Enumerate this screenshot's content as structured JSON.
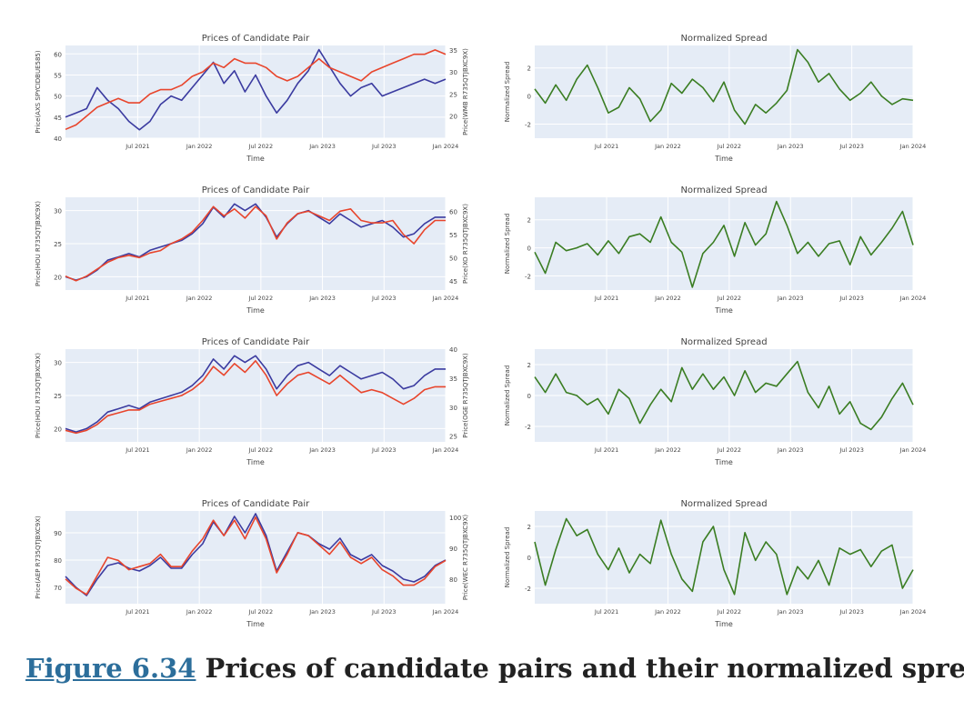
{
  "caption": {
    "figure_label": "Figure 6.34",
    "text": " Prices of candidate pairs and their normalized spread."
  },
  "colors": {
    "blue_series": "#3b3ba0",
    "red_series": "#e8452c",
    "green_series": "#3a7d22",
    "plot_bg": "#e5ecf6",
    "grid": "#ffffff"
  },
  "chart_data": [
    {
      "type": "line",
      "title": "Prices of Candidate Pair",
      "xlabel": "Time",
      "ylabel": "Price(AXS SPYCIDBUE585)",
      "y2label": "Price(WMB R735QTJBXC9X)",
      "xticks": [
        "Jul 2021",
        "Jan 2022",
        "Jul 2022",
        "Jan 2023",
        "Jul 2023",
        "Jan 2024"
      ],
      "ylim": [
        40,
        62
      ],
      "yticks": [
        40,
        45,
        50,
        55,
        60
      ],
      "y2lim": [
        15,
        36
      ],
      "y2ticks": [
        20,
        25,
        30,
        35
      ],
      "series": [
        {
          "color": "#3b3ba0",
          "axis": "y",
          "values": [
            45,
            46,
            47,
            52,
            49,
            47,
            44,
            42,
            44,
            48,
            50,
            49,
            52,
            55,
            58,
            53,
            56,
            51,
            55,
            50,
            46,
            49,
            53,
            56,
            61,
            57,
            53,
            50,
            52,
            53,
            50,
            51,
            52,
            53,
            54,
            53,
            54
          ]
        },
        {
          "color": "#e8452c",
          "axis": "y2",
          "values": [
            17,
            18,
            20,
            22,
            23,
            24,
            23,
            23,
            25,
            26,
            26,
            27,
            29,
            30,
            32,
            31,
            33,
            32,
            32,
            31,
            29,
            28,
            29,
            31,
            33,
            31,
            30,
            29,
            28,
            30,
            31,
            32,
            33,
            34,
            34,
            35,
            34
          ]
        }
      ]
    },
    {
      "type": "line",
      "title": "Normalized Spread",
      "xlabel": "Time",
      "ylabel": "Normalized Spread",
      "xticks": [
        "Jul 2021",
        "Jan 2022",
        "Jul 2022",
        "Jan 2023",
        "Jul 2023",
        "Jan 2024"
      ],
      "ylim": [
        -3,
        3.6
      ],
      "yticks": [
        -2,
        0,
        2
      ],
      "series": [
        {
          "color": "#3a7d22",
          "axis": "y",
          "values": [
            0.5,
            -0.5,
            0.8,
            -0.3,
            1.2,
            2.2,
            0.6,
            -1.2,
            -0.8,
            0.6,
            -0.2,
            -1.8,
            -1.0,
            0.9,
            0.2,
            1.2,
            0.6,
            -0.4,
            1.0,
            -1.0,
            -2.0,
            -0.6,
            -1.2,
            -0.5,
            0.4,
            3.3,
            2.4,
            1.0,
            1.6,
            0.5,
            -0.3,
            0.2,
            1.0,
            0.0,
            -0.6,
            -0.2,
            -0.3
          ]
        }
      ]
    },
    {
      "type": "line",
      "title": "Prices of Candidate Pair",
      "xlabel": "Time",
      "ylabel": "Price(HOU R735QTJBXC9X)",
      "y2label": "Price(XO R735QTJBXC9X)",
      "xticks": [
        "Jul 2021",
        "Jan 2022",
        "Jul 2022",
        "Jan 2023",
        "Jul 2023",
        "Jan 2024"
      ],
      "ylim": [
        18,
        32
      ],
      "yticks": [
        20,
        25,
        30
      ],
      "y2lim": [
        43,
        63
      ],
      "y2ticks": [
        45,
        50,
        55,
        60
      ],
      "series": [
        {
          "color": "#3b3ba0",
          "axis": "y",
          "values": [
            20,
            19.5,
            20,
            21,
            22.5,
            23,
            23.5,
            23,
            24,
            24.5,
            25,
            25.5,
            26.5,
            28,
            30.5,
            29,
            31,
            30,
            31,
            29,
            26,
            28,
            29.5,
            30,
            29,
            28,
            29.5,
            28.5,
            27.5,
            28,
            28.5,
            27.5,
            26,
            26.5,
            28,
            29,
            29
          ]
        },
        {
          "color": "#e8452c",
          "axis": "y2",
          "values": [
            46,
            45,
            46,
            47.5,
            49,
            50,
            50.5,
            50,
            51,
            51.5,
            53,
            54,
            55.5,
            58,
            61,
            59,
            60.5,
            58.5,
            61,
            59,
            54,
            57.5,
            59.5,
            60,
            59,
            58,
            60,
            60.5,
            58,
            57.5,
            57.5,
            58,
            55,
            53,
            56,
            58,
            58
          ]
        }
      ]
    },
    {
      "type": "line",
      "title": "Normalized Spread",
      "xlabel": "Time",
      "ylabel": "Normalized Spread",
      "xticks": [
        "Jul 2021",
        "Jan 2022",
        "Jul 2022",
        "Jan 2023",
        "Jul 2023",
        "Jan 2024"
      ],
      "ylim": [
        -3,
        3.6
      ],
      "yticks": [
        -2,
        0,
        2
      ],
      "series": [
        {
          "color": "#3a7d22",
          "axis": "y",
          "values": [
            -0.3,
            -1.8,
            0.4,
            -0.2,
            0.0,
            0.3,
            -0.5,
            0.5,
            -0.4,
            0.8,
            1.0,
            0.4,
            2.2,
            0.4,
            -0.3,
            -2.8,
            -0.4,
            0.4,
            1.6,
            -0.6,
            1.8,
            0.2,
            1.0,
            3.3,
            1.6,
            -0.4,
            0.4,
            -0.6,
            0.3,
            0.5,
            -1.2,
            0.8,
            -0.5,
            0.4,
            1.4,
            2.6,
            0.2
          ]
        }
      ]
    },
    {
      "type": "line",
      "title": "Prices of Candidate Pair",
      "xlabel": "Time",
      "ylabel": "Price(HOU R735QTJBXC9X)",
      "y2label": "Price(OGE R735QTJBXC9X)",
      "xticks": [
        "Jul 2021",
        "Jan 2022",
        "Jul 2022",
        "Jan 2023",
        "Jul 2023",
        "Jan 2024"
      ],
      "ylim": [
        18,
        32
      ],
      "yticks": [
        20,
        25,
        30
      ],
      "y2lim": [
        24,
        40
      ],
      "y2ticks": [
        25,
        30,
        35,
        40
      ],
      "series": [
        {
          "color": "#3b3ba0",
          "axis": "y",
          "values": [
            20,
            19.5,
            20,
            21,
            22.5,
            23,
            23.5,
            23,
            24,
            24.5,
            25,
            25.5,
            26.5,
            28,
            30.5,
            29,
            31,
            30,
            31,
            29,
            26,
            28,
            29.5,
            30,
            29,
            28,
            29.5,
            28.5,
            27.5,
            28,
            28.5,
            27.5,
            26,
            26.5,
            28,
            29,
            29
          ]
        },
        {
          "color": "#e8452c",
          "axis": "y2",
          "values": [
            26,
            25.5,
            26,
            27,
            28.5,
            29,
            29.5,
            29.5,
            30.5,
            31,
            31.5,
            32,
            33,
            34.5,
            37,
            35.5,
            37.5,
            36,
            38,
            35.5,
            32,
            34,
            35.5,
            36,
            35,
            34,
            35.5,
            34,
            32.5,
            33,
            32.5,
            31.5,
            30.5,
            31.5,
            33,
            33.5,
            33.5
          ]
        }
      ]
    },
    {
      "type": "line",
      "title": "Normalized Spread",
      "xlabel": "Time",
      "ylabel": "Normalized Spread",
      "xticks": [
        "Jul 2021",
        "Jan 2022",
        "Jul 2022",
        "Jan 2023",
        "Jul 2023",
        "Jan 2024"
      ],
      "ylim": [
        -3,
        3
      ],
      "yticks": [
        -2,
        0,
        2
      ],
      "series": [
        {
          "color": "#3a7d22",
          "axis": "y",
          "values": [
            1.2,
            0.2,
            1.4,
            0.2,
            0.0,
            -0.6,
            -0.2,
            -1.2,
            0.4,
            -0.2,
            -1.8,
            -0.6,
            0.4,
            -0.4,
            1.8,
            0.4,
            1.4,
            0.4,
            1.2,
            0.0,
            1.6,
            0.2,
            0.8,
            0.6,
            1.4,
            2.2,
            0.2,
            -0.8,
            0.6,
            -1.2,
            -0.4,
            -1.8,
            -2.2,
            -1.4,
            -0.2,
            0.8,
            -0.6
          ]
        }
      ]
    },
    {
      "type": "line",
      "title": "Prices of Candidate Pair",
      "xlabel": "Time",
      "ylabel": "Price(AEP R735QTJBXC9X)",
      "y2label": "Price(WEC R735QTJBXC9X)",
      "xticks": [
        "Jul 2021",
        "Jan 2022",
        "Jul 2022",
        "Jan 2023",
        "Jul 2023",
        "Jan 2024"
      ],
      "ylim": [
        64,
        98
      ],
      "yticks": [
        70,
        80,
        90
      ],
      "y2lim": [
        72,
        102
      ],
      "y2ticks": [
        80,
        90,
        100
      ],
      "series": [
        {
          "color": "#3b3ba0",
          "axis": "y",
          "values": [
            74,
            70,
            67,
            73,
            78,
            79,
            77,
            76,
            78,
            81,
            77,
            77,
            82,
            86,
            94,
            89,
            96,
            90,
            97,
            89,
            76,
            83,
            90,
            89,
            86,
            84,
            88,
            82,
            80,
            82,
            78,
            76,
            73,
            72,
            74,
            78,
            80
          ]
        },
        {
          "color": "#e8452c",
          "axis": "y2",
          "values": [
            80,
            77,
            75,
            81,
            87,
            86,
            83,
            84,
            85,
            88,
            84,
            84,
            89,
            93,
            99,
            94,
            99,
            93,
            100,
            93,
            82,
            88,
            95,
            94,
            91,
            88,
            92,
            87,
            85,
            87,
            83,
            81,
            78,
            78,
            80,
            84,
            86
          ]
        }
      ]
    },
    {
      "type": "line",
      "title": "Normalized Spread",
      "xlabel": "Time",
      "ylabel": "Normalized Spread",
      "xticks": [
        "Jul 2021",
        "Jan 2022",
        "Jul 2022",
        "Jan 2023",
        "Jul 2023",
        "Jan 2024"
      ],
      "ylim": [
        -3,
        3
      ],
      "yticks": [
        -2,
        0,
        2
      ],
      "series": [
        {
          "color": "#3a7d22",
          "axis": "y",
          "values": [
            1.0,
            -1.8,
            0.5,
            2.5,
            1.4,
            1.8,
            0.2,
            -0.8,
            0.6,
            -1.0,
            0.2,
            -0.4,
            2.4,
            0.2,
            -1.4,
            -2.2,
            1.0,
            2.0,
            -0.8,
            -2.4,
            1.6,
            -0.2,
            1.0,
            0.2,
            -2.4,
            -0.6,
            -1.4,
            -0.2,
            -1.8,
            0.6,
            0.2,
            0.5,
            -0.6,
            0.4,
            0.8,
            -2.0,
            -0.8
          ]
        }
      ]
    }
  ]
}
